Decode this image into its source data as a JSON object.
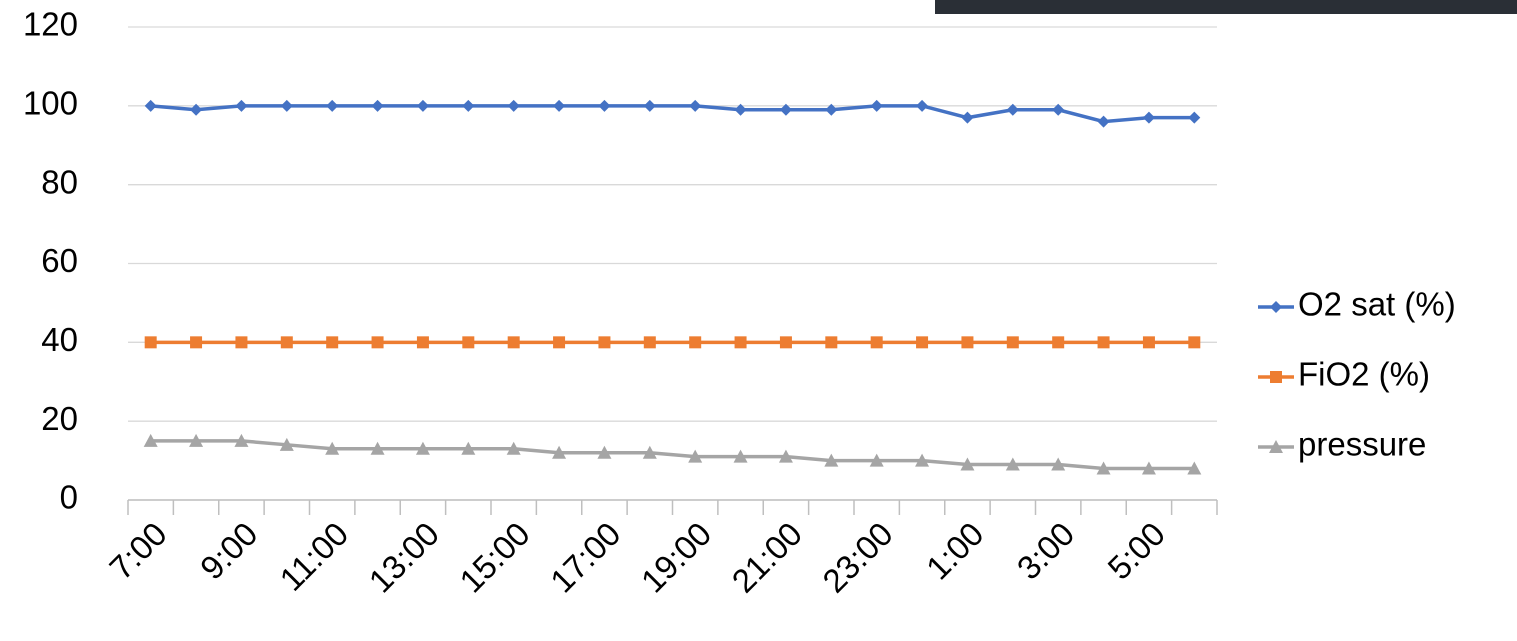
{
  "chart_data": {
    "type": "line",
    "categories": [
      "7:00",
      null,
      "9:00",
      null,
      "11:00",
      null,
      "13:00",
      null,
      "15:00",
      null,
      "17:00",
      null,
      "19:00",
      null,
      "21:00",
      null,
      "23:00",
      null,
      "1:00",
      null,
      "3:00",
      null,
      "5:00",
      null
    ],
    "series": [
      {
        "name": "O2 sat (%)",
        "color": "#4472c4",
        "marker": "diamond",
        "values": [
          100,
          99,
          100,
          100,
          100,
          100,
          100,
          100,
          100,
          100,
          100,
          100,
          100,
          99,
          99,
          99,
          100,
          100,
          97,
          99,
          99,
          96,
          97,
          97
        ]
      },
      {
        "name": "FiO2 (%)",
        "color": "#ed7d31",
        "marker": "square",
        "values": [
          40,
          40,
          40,
          40,
          40,
          40,
          40,
          40,
          40,
          40,
          40,
          40,
          40,
          40,
          40,
          40,
          40,
          40,
          40,
          40,
          40,
          40,
          40,
          40
        ]
      },
      {
        "name": "pressure",
        "color": "#a5a5a5",
        "marker": "triangle",
        "values": [
          15,
          15,
          15,
          14,
          13,
          13,
          13,
          13,
          13,
          12,
          12,
          12,
          11,
          11,
          11,
          10,
          10,
          10,
          9,
          9,
          9,
          8,
          8,
          8
        ]
      }
    ],
    "ylim": [
      0,
      120
    ],
    "yticks": [
      0,
      20,
      40,
      60,
      80,
      100,
      120
    ],
    "grid": true,
    "legend": "right"
  }
}
